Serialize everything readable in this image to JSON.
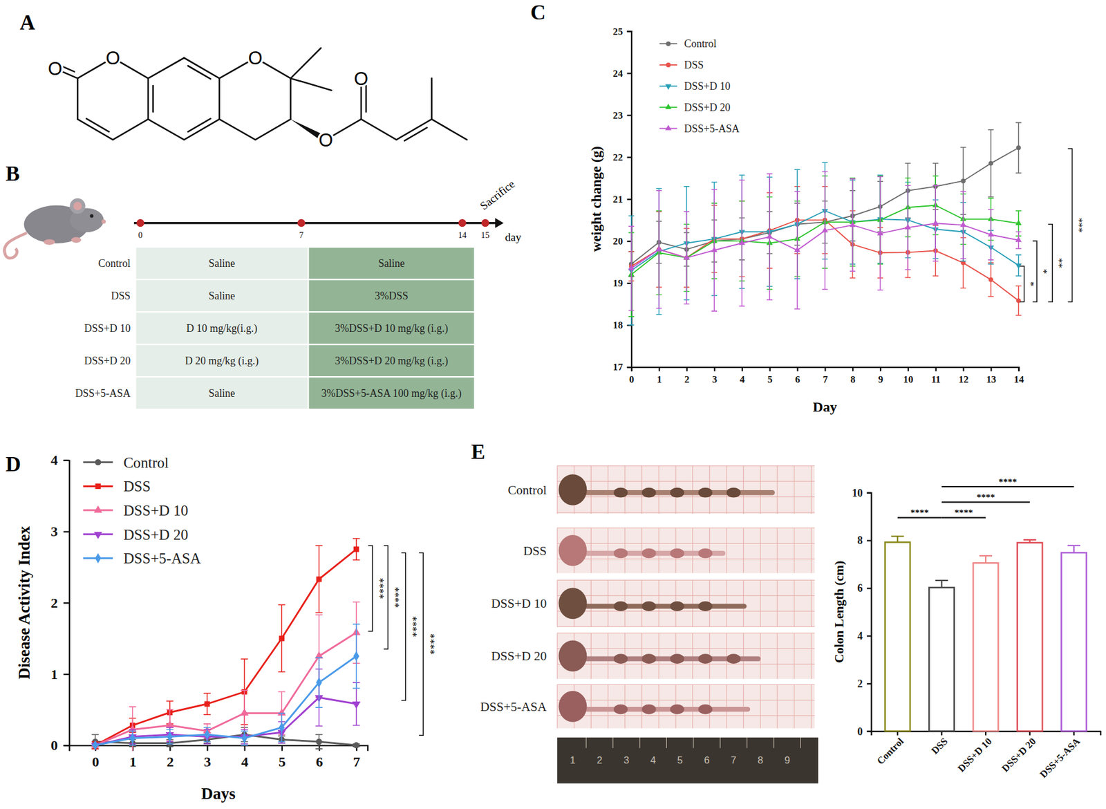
{
  "panel_labels": [
    "A",
    "B",
    "C",
    "D",
    "E"
  ],
  "structure": {
    "atom_labels": [
      "O",
      "O",
      "O",
      "O",
      "O"
    ]
  },
  "design": {
    "timeline": {
      "days": [
        0,
        7,
        14,
        15
      ],
      "unit": "day",
      "end_label": "Sacrifice"
    },
    "table": {
      "rows": [
        [
          "Control",
          "Saline",
          "Saline"
        ],
        [
          "DSS",
          "Saline",
          "3%DSS"
        ],
        [
          "DSS+D 10",
          "D 10 mg/kg(i.g.)",
          "3%DSS+D 10 mg/kg (i.g.)"
        ],
        [
          "DSS+D 20",
          "D 20 mg/kg (i.g.)",
          "3%DSS+D 20 mg/kg (i.g.)"
        ],
        [
          "DSS+5-ASA",
          "Saline",
          "3%DSS+5-ASA 100 mg/kg (i.g.)"
        ]
      ]
    }
  },
  "photos": {
    "labels": [
      "Control",
      "DSS",
      "DSS+D 10",
      "DSS+D 20",
      "DSS+5-ASA"
    ],
    "ruler": [
      "1",
      "2",
      "3",
      "4",
      "5",
      "6",
      "7",
      "8",
      "9"
    ]
  },
  "chart_data": [
    {
      "type": "line",
      "x_label": "Day",
      "y_label": "weight change (g)",
      "x": [
        0,
        1,
        2,
        3,
        4,
        5,
        6,
        7,
        8,
        9,
        10,
        11,
        12,
        13,
        14
      ],
      "xlim": [
        0,
        14
      ],
      "xticks": [
        0,
        1,
        2,
        3,
        4,
        5,
        6,
        7,
        8,
        9,
        10,
        11,
        12,
        13,
        14
      ],
      "ylim": [
        17,
        25
      ],
      "yticks": [
        17,
        18,
        19,
        20,
        21,
        22,
        23,
        24,
        25
      ],
      "legend": "top-left",
      "series": [
        {
          "name": "Control",
          "color": "#6d6d6d",
          "marker": "circle",
          "values": [
            19.45,
            19.97,
            19.8,
            20.0,
            20.05,
            20.2,
            20.4,
            20.45,
            20.6,
            20.82,
            21.2,
            21.3,
            21.43,
            21.85,
            22.22
          ],
          "errors": [
            0.3,
            0.5,
            0.4,
            0.5,
            0.5,
            0.5,
            0.5,
            0.5,
            0.6,
            0.6,
            0.65,
            0.55,
            0.8,
            0.8,
            0.6
          ]
        },
        {
          "name": "DSS",
          "color": "#e8524a",
          "marker": "circle",
          "values": [
            19.4,
            19.8,
            19.6,
            20.05,
            20.05,
            20.25,
            20.5,
            20.5,
            19.92,
            19.72,
            19.73,
            19.77,
            19.48,
            19.08,
            18.58
          ],
          "errors": [
            0.35,
            0.9,
            0.7,
            0.8,
            0.9,
            0.9,
            0.8,
            0.8,
            0.8,
            0.6,
            0.6,
            0.6,
            0.6,
            0.4,
            0.35
          ]
        },
        {
          "name": "DSS+D 10",
          "color": "#2aa0b8",
          "marker": "triangle-down",
          "values": [
            19.3,
            19.75,
            19.95,
            20.05,
            20.22,
            20.22,
            20.4,
            20.72,
            20.45,
            20.52,
            20.5,
            20.28,
            20.22,
            19.85,
            19.42
          ],
          "errors": [
            1.3,
            1.5,
            1.35,
            1.35,
            1.35,
            1.3,
            1.3,
            1.15,
            1.0,
            1.05,
            0.9,
            0.7,
            0.7,
            0.4,
            0.25
          ]
        },
        {
          "name": "DSS+D 20",
          "color": "#2ec52e",
          "marker": "triangle-up",
          "values": [
            19.2,
            19.72,
            19.6,
            20.0,
            20.0,
            19.95,
            20.05,
            20.45,
            20.45,
            20.5,
            20.8,
            20.85,
            20.52,
            20.52,
            20.42
          ],
          "errors": [
            1.0,
            1.0,
            0.8,
            0.9,
            0.95,
            1.1,
            0.9,
            1.1,
            1.05,
            1.05,
            0.7,
            0.7,
            0.6,
            0.5,
            0.3
          ]
        },
        {
          "name": "DSS+5-ASA",
          "color": "#c05ad0",
          "marker": "triangle-up",
          "values": [
            19.35,
            19.8,
            19.6,
            19.78,
            19.95,
            20.1,
            19.78,
            20.25,
            20.38,
            20.18,
            20.32,
            20.42,
            20.38,
            20.15,
            20.02
          ],
          "errors": [
            1.0,
            1.4,
            1.1,
            1.45,
            1.5,
            1.5,
            1.4,
            1.4,
            1.1,
            1.35,
            1.0,
            0.9,
            0.8,
            0.6,
            0.2
          ]
        }
      ],
      "annotations": [
        {
          "text": "*",
          "y": [
            18.55,
            19.4
          ]
        },
        {
          "text": "*",
          "y": [
            18.55,
            20.0
          ]
        },
        {
          "text": "**",
          "y": [
            18.55,
            20.4
          ]
        },
        {
          "text": "***",
          "y": [
            18.55,
            22.2
          ]
        }
      ]
    },
    {
      "type": "line",
      "x_label": "Days",
      "y_label": "Disease Activity Index",
      "x": [
        0,
        1,
        2,
        3,
        4,
        5,
        6,
        7
      ],
      "xlim": [
        -0.7,
        7.3
      ],
      "xticks": [
        0,
        1,
        2,
        3,
        4,
        5,
        6,
        7
      ],
      "ylim": [
        0,
        4
      ],
      "yticks": [
        0,
        1,
        2,
        3,
        4
      ],
      "legend": "top-left",
      "series": [
        {
          "name": "Control",
          "color": "#5a5a5a",
          "marker": "circle",
          "values": [
            0.05,
            0.03,
            0.03,
            0.08,
            0.15,
            0.08,
            0.05,
            0.0
          ],
          "errors": [
            0.1,
            0.05,
            0.05,
            0.05,
            0.1,
            0.05,
            0.1,
            0.02
          ]
        },
        {
          "name": "DSS",
          "color": "#e8201a",
          "marker": "square",
          "values": [
            0.0,
            0.28,
            0.46,
            0.58,
            0.75,
            1.5,
            2.33,
            2.75
          ],
          "errors": [
            0.05,
            0.1,
            0.16,
            0.15,
            0.46,
            0.47,
            0.47,
            0.15
          ]
        },
        {
          "name": "DSS+D 10",
          "color": "#f06a9a",
          "marker": "triangle-up",
          "values": [
            0.0,
            0.22,
            0.28,
            0.2,
            0.45,
            0.45,
            1.25,
            1.58
          ],
          "errors": [
            0.0,
            0.32,
            0.22,
            0.1,
            0.32,
            0.3,
            0.58,
            0.43
          ]
        },
        {
          "name": "DSS+D 20",
          "color": "#a040d0",
          "marker": "triangle-down",
          "values": [
            0.0,
            0.12,
            0.15,
            0.12,
            0.12,
            0.18,
            0.67,
            0.58
          ],
          "errors": [
            0.0,
            0.1,
            0.1,
            0.1,
            0.1,
            0.15,
            0.4,
            0.3
          ]
        },
        {
          "name": "DSS+5-ASA",
          "color": "#4a9ae8",
          "marker": "diamond",
          "values": [
            0.0,
            0.1,
            0.12,
            0.15,
            0.1,
            0.25,
            0.88,
            1.25
          ],
          "errors": [
            0.0,
            0.1,
            0.1,
            0.1,
            0.1,
            0.2,
            0.35,
            0.45
          ]
        }
      ],
      "annotations": [
        {
          "text": "****",
          "y": [
            2.8,
            1.6
          ]
        },
        {
          "text": "****",
          "y": [
            2.8,
            1.35
          ]
        },
        {
          "text": "****",
          "y": [
            2.7,
            0.63
          ]
        },
        {
          "text": "****",
          "y": [
            2.7,
            0.14
          ]
        }
      ]
    },
    {
      "type": "bar",
      "y_label": "Colon Length (cm)",
      "categories": [
        "Control",
        "DSS",
        "DSS+D 10",
        "DSS+D 20",
        "DSS+5-ASA"
      ],
      "values": [
        7.92,
        6.02,
        7.05,
        7.9,
        7.48
      ],
      "errors": [
        0.25,
        0.3,
        0.3,
        0.12,
        0.3
      ],
      "colors": [
        "#8a8a1a",
        "#4a4a4a",
        "#f08a8a",
        "#e0505a",
        "#b060d8"
      ],
      "ylim": [
        0,
        10
      ],
      "yticks": [
        0,
        2,
        4,
        6,
        8,
        10
      ],
      "annotations": [
        {
          "text": "****",
          "between": [
            0,
            1
          ],
          "y": 8.95
        },
        {
          "text": "****",
          "between": [
            1,
            2
          ],
          "y": 8.95
        },
        {
          "text": "****",
          "between": [
            1,
            3
          ],
          "y": 9.6
        },
        {
          "text": "****",
          "between": [
            1,
            4
          ],
          "y": 10.25
        }
      ]
    }
  ]
}
